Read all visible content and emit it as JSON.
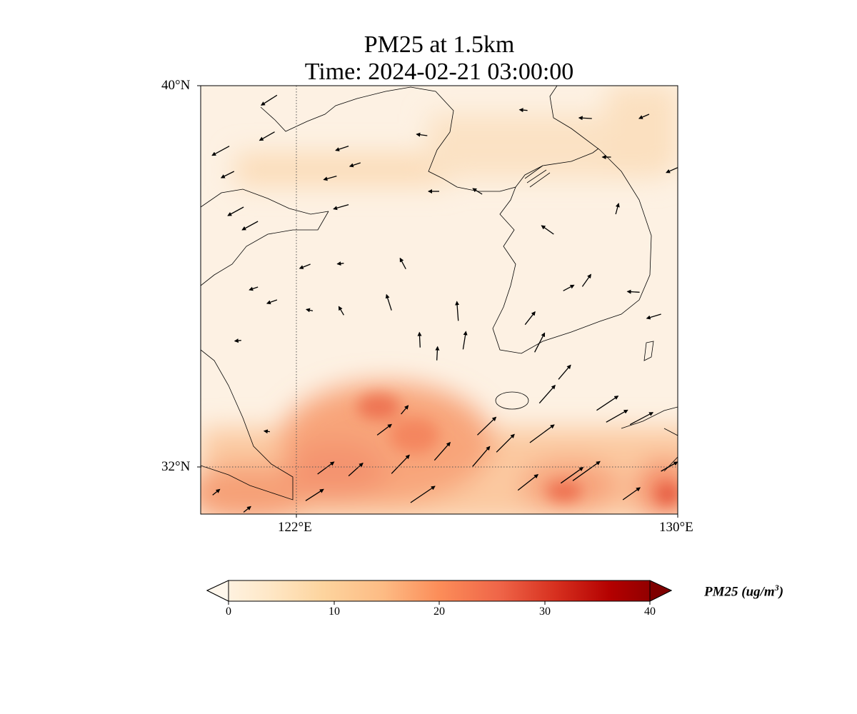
{
  "title": "PM25 at 1.5km",
  "subtitle": "Time: 2024-02-21 03:00:00",
  "axes": {
    "lat_ticks": [
      "40°N",
      "32°N"
    ],
    "lon_ticks": [
      "122°E",
      "130°E"
    ],
    "lon_range": [
      120,
      130
    ],
    "lat_range": [
      31,
      40
    ]
  },
  "colorbar": {
    "label_main": "PM25 (ug/m",
    "label_sup": "3",
    "label_close": ")",
    "ticks": [
      "0",
      "10",
      "20",
      "30",
      "40"
    ],
    "range": [
      0,
      40
    ],
    "extend": "both",
    "colors": [
      "#fff7ec",
      "#fee8c8",
      "#fdd49e",
      "#fdbb84",
      "#fc8d59",
      "#ef6548",
      "#d7301f",
      "#b30000",
      "#7f0000"
    ]
  },
  "chart_data": {
    "type": "map",
    "variable": "PM25",
    "units": "ug/m3",
    "wind_vectors": [
      [
        121.6,
        39.8,
        -4.4,
        -2.8
      ],
      [
        120.6,
        38.73,
        -4.8,
        -2.6
      ],
      [
        121.55,
        39.03,
        -4.2,
        -2.4
      ],
      [
        120.7,
        38.2,
        -3.6,
        -1.8
      ],
      [
        120.9,
        37.45,
        -4.4,
        -2.4
      ],
      [
        121.2,
        37.15,
        -4.4,
        -2.4
      ],
      [
        123.1,
        38.73,
        -3.6,
        -1.2
      ],
      [
        123.35,
        38.38,
        -3,
        -1
      ],
      [
        122.85,
        38.1,
        -3.6,
        -1
      ],
      [
        123.1,
        37.5,
        -4.2,
        -1.2
      ],
      [
        124.75,
        38.95,
        -3,
        0.4
      ],
      [
        125.0,
        37.78,
        -3,
        0
      ],
      [
        125.9,
        37.72,
        -2.6,
        1.6
      ],
      [
        126.85,
        39.48,
        -2.2,
        0.2
      ],
      [
        128.2,
        39.31,
        -3.6,
        0.2
      ],
      [
        129.4,
        39.4,
        -2.8,
        -1.2
      ],
      [
        128.6,
        38.5,
        -2.4,
        0
      ],
      [
        130.0,
        38.28,
        -3.2,
        -1.4
      ],
      [
        127.4,
        36.88,
        -3.4,
        2.4
      ],
      [
        128.7,
        37.3,
        0.8,
        3
      ],
      [
        122.3,
        36.25,
        -3,
        -1.2
      ],
      [
        124.3,
        36.15,
        -1.6,
        3
      ],
      [
        124.0,
        35.28,
        -1.4,
        4.4
      ],
      [
        123.0,
        35.18,
        -1.4,
        2.4
      ],
      [
        125.4,
        35.06,
        -0.4,
        5.4
      ],
      [
        124.6,
        34.5,
        -0.2,
        4.2
      ],
      [
        124.95,
        34.23,
        0.2,
        3.8
      ],
      [
        125.5,
        34.46,
        0.8,
        5
      ],
      [
        126.8,
        34.98,
        2.8,
        3.6
      ],
      [
        127.6,
        35.69,
        3,
        1.6
      ],
      [
        128.0,
        35.78,
        2.4,
        3.4
      ],
      [
        129.2,
        35.66,
        -3.4,
        0.2
      ],
      [
        129.65,
        35.2,
        -4,
        -1.2
      ],
      [
        127.0,
        34.4,
        2.8,
        5.4
      ],
      [
        127.1,
        33.33,
        4.4,
        5
      ],
      [
        127.5,
        33.83,
        3.4,
        4
      ],
      [
        128.3,
        33.18,
        6,
        4
      ],
      [
        128.5,
        32.93,
        6,
        3.4
      ],
      [
        129.0,
        32.88,
        6.4,
        3.4
      ],
      [
        126.9,
        32.5,
        6.8,
        5
      ],
      [
        125.8,
        32.66,
        5.2,
        5
      ],
      [
        126.2,
        32.3,
        5,
        5
      ],
      [
        124.9,
        32.13,
        4.4,
        5
      ],
      [
        124.0,
        31.85,
        5,
        5.2
      ],
      [
        125.7,
        32.0,
        4.8,
        5.6
      ],
      [
        123.7,
        32.66,
        4,
        3
      ],
      [
        124.2,
        33.1,
        2,
        2.4
      ],
      [
        122.45,
        31.84,
        4.6,
        3.4
      ],
      [
        123.1,
        31.8,
        4,
        3.6
      ],
      [
        122.2,
        31.28,
        5,
        3.2
      ],
      [
        124.4,
        31.24,
        6.8,
        4.6
      ],
      [
        126.65,
        31.5,
        5.6,
        4.4
      ],
      [
        127.55,
        31.65,
        6.2,
        4.4
      ],
      [
        127.8,
        31.7,
        7.6,
        5.4
      ],
      [
        128.85,
        31.3,
        4.8,
        3.4
      ],
      [
        129.65,
        31.9,
        4.6,
        2.6
      ],
      [
        120.25,
        31.4,
        2,
        1.6
      ],
      [
        120.9,
        31.04,
        2,
        1.6
      ],
      [
        121.2,
        35.77,
        -2.4,
        -0.8
      ],
      [
        121.6,
        35.5,
        -2.8,
        -1
      ],
      [
        120.85,
        34.65,
        -1.8,
        -0.2
      ],
      [
        121.45,
        32.73,
        -1.6,
        0.2
      ],
      [
        123.0,
        36.27,
        -1.8,
        -0.2
      ],
      [
        122.35,
        35.27,
        -1.8,
        0.4
      ]
    ]
  }
}
